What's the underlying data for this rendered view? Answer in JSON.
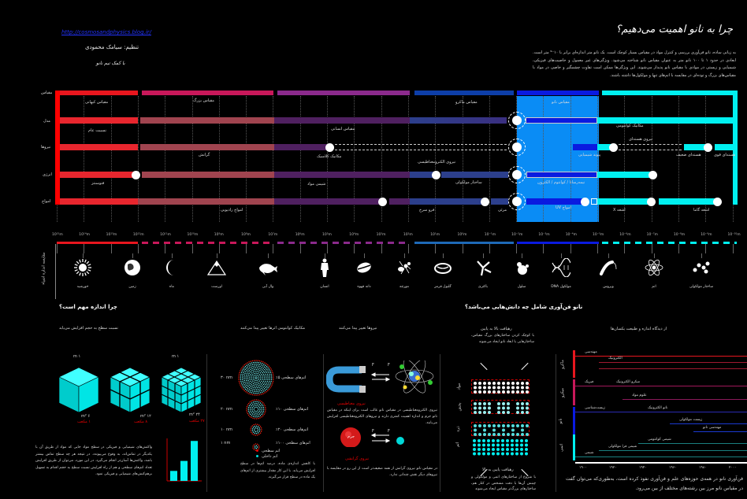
{
  "header": {
    "link": "http://cosmosandphysics.blog.ir/",
    "author": "تنظیم: سیامک محمودی",
    "signature": "با کمک تیم نانو",
    "title": "چرا به نانو اهمیت می‌دهیم؟",
    "intro": "به زبانی ساده، نانو فن‌آوری بررسی و کنترل مواد در مقیاس بسیار کوچک است. یک نانو متر اندازه‌ای برابر با ۱۰⁻⁹ متر است. ابعادی در حدود ۱ تا ۱۰۰ نانو متر به عنوان مقیاس نانو شناخته می‌شود. ویژگی‌های غیر معمول و خاصیت‌های فیزیکی، شیمیایی و زیستی در موادی با مقیاس نانو پدیدار می‌شوند. این ویژگی‌ها ممکن است تفاوت چشمگیر و خاصی در مواد با مقیاس‌های بزرگ و توده‌ای در مقایسه با اتم‌های تنها و مولکول‌ها داشته باشند."
  },
  "scale_chart": {
    "row_labels": [
      "مقیاس",
      "مدل",
      "نیروها",
      "انرژی",
      "امواج"
    ],
    "regions": [
      "مقیاس کیهانی",
      "مقیاس بزرگ",
      "مقیاس ماکرو",
      "مقیاس نانو"
    ],
    "labels": {
      "cosmic": "مقیاس کیهانی",
      "large": "مقیاس بزرگ",
      "macro": "مقیاس ماکرو",
      "nano": "مقیاس نانو",
      "relativity": "نسبیت عام",
      "human": "مقیاس انسانی",
      "quantum": "مکانیک کوانتومی",
      "gravity": "گرانش",
      "classical": "مکانیک کلاسیک",
      "em": "نیروی الکترومغناطیسی",
      "chem_bond": "پیوند شیمیایی",
      "weak_label": "نیروی هسته‌ای",
      "weak": "هسته‌ای ضعیف",
      "strong": "هسته‌ای قوی",
      "photosynthesis": "فتوسنتز",
      "matter_chem": "شیمی مواد",
      "molecular": "ساختار مولکولی",
      "semiconductor": "نیمه‌رسانا / کوانتوم / الکترون",
      "radio": "امواج رادیویی",
      "infrared": "فرو سرخ",
      "visible": "مرئی",
      "uv": "امواج UV",
      "xray": "اشعه X",
      "gamma": "اشعه گاما"
    },
    "colors": {
      "cosmic": "#e8161e",
      "large": "#c8185a",
      "macro": "#8b2a8c",
      "micro": "#1e4fa8",
      "nano": "#0a1ae0",
      "nano_zone": "#0a8cf5",
      "atomic": "#00f0f0"
    }
  },
  "scale_axis": {
    "side_label": "مقایسه اندازه اشیاء",
    "ticks": [
      "10¹⁵m",
      "10¹⁴m",
      "10¹³m",
      "10¹²m",
      "10¹¹m",
      "10¹⁰m",
      "10⁹m",
      "10⁸m",
      "10⁷m",
      "10⁶m",
      "10⁵m",
      "10⁴m",
      "10³m",
      "10²m",
      "10¹m",
      "10⁰m",
      "10⁻¹m",
      "10⁻²m",
      "10⁻³m",
      "10⁻⁴m",
      "10⁻⁵m",
      "10⁻⁶m",
      "10⁻⁷m",
      "10⁻⁸m",
      "10⁻⁹m",
      "10⁻¹⁰m"
    ],
    "objects": [
      {
        "label": "خورشید",
        "icon": "sun-icon"
      },
      {
        "label": "زمین",
        "icon": "earth-icon"
      },
      {
        "label": "ماه",
        "icon": "moon-icon"
      },
      {
        "label": "اورست",
        "icon": "mountain-icon"
      },
      {
        "label": "وال آبی",
        "icon": "whale-icon"
      },
      {
        "label": "انسان",
        "icon": "human-icon"
      },
      {
        "label": "دانه قهوه",
        "icon": "coffee-bean-icon"
      },
      {
        "label": "مورچه",
        "icon": "ant-icon"
      },
      {
        "label": "گلبول قرمز",
        "icon": "red-blood-cell-icon"
      },
      {
        "label": "باکتری",
        "icon": "antibody-icon"
      },
      {
        "label": "سلول",
        "icon": "cell-icon"
      },
      {
        "label": "مولکول DNA",
        "icon": "dna-icon"
      },
      {
        "label": "ویروس",
        "icon": "virus-icon"
      },
      {
        "label": "اتم",
        "icon": "atom-icon"
      },
      {
        "label": "ساختار مولکولی",
        "icon": "molecule-icon"
      }
    ]
  },
  "why_size": {
    "title": "چرا اندازه مهم است؟",
    "subtitle": "نسبت سطح به حجم افزایش می‌یابد",
    "cube_top": [
      "۱ m",
      "۱ m"
    ],
    "cube_area": [
      "۶ m²",
      "۱۲ m²",
      "۲۴ m²"
    ],
    "cube_count": [
      "۱ مکعب",
      "۸ مکعب",
      "۲۷ مکعب"
    ],
    "text": "واکنش‌های شیمیایی و فیزیکی در سطح مواد جایی که مواد از طریق آن با یکدیگر در تماس‌اند، به وقوع می‌پیوندد. در نتیجه هر چه سطح تماس بیشتر باشد، واکنش‌ها آسان‌تر انجام می‌گیرد. در این مورد، می‌توان از طریق افزایش تعداد اتم‌های سطحی و هم از راه افزایش نسبت سطح به حجم اقدام به تسهیل برهم‌کنش‌های شیمیایی و فیزیکی نمود.",
    "chart": {
      "type": "bar",
      "categories": [
        "۱",
        "۸",
        "۲۷"
      ],
      "values": [
        6,
        12,
        24
      ],
      "xlabel": "مساحت سطح",
      "ylabel": "m²",
      "ylim": [
        0,
        26
      ],
      "ticks": [
        "۲۰",
        "۱۰",
        "۵"
      ]
    }
  },
  "atoms": {
    "title": "مکانیک کوانتومی اثرها تغییر پیدا می‌کنند",
    "sizes": [
      "۳۰ nm",
      "۲۰ nm",
      "۱۰ nm",
      "۱ nm"
    ],
    "labels": [
      "اتم‌های سطحی ۵٪",
      "اتم‌های سطحی ۱۰٪",
      "اتم‌های سطحی ۲۰٪",
      "اتم‌های سطحی ۱۰۰٪"
    ],
    "legend": [
      "اتم سطحی",
      "اتم داخلی"
    ],
    "text": "با کاهش اندازه‌ی ماده، درصد اتم‌ها در سطح افزایش می‌یابد. با این کار مقدار بیشتری از اتم‌های یک ماده در سطح قرار می‌گیرند."
  },
  "forces": {
    "title": "نیروها تغییر پیدا می‌کنند",
    "magnetic": "نیروی مغناطیسی",
    "magnetic_text": "نیروی الکترومغناطیسی در مقیاس نانو غالب است برای اینکه در مقیاس نانو جرم و اندازه اهمیت کمتری دارند و نیروهای الکترومغناطیسی افزایش می‌یابند.",
    "gravity": "نیروی گرانشی",
    "gravity_text": "در مقیاس نانو نیروی گرانش از همه ضعیف‌تر است از این رو در مقایسه با نیروهای دیگر نقش چندانی ندارد.",
    "mass_label": "جرم",
    "arrow_labels": [
      "F",
      "F",
      "F",
      "F"
    ]
  },
  "approaches": {
    "title": "نانو فن‌آوری شامل چه دانش‌هایی می‌باشد؟",
    "top_down": "رهیافت بالا به پایین",
    "top_down_text": "با کوچک کردن ساختارهای بزرگ مقیاس، ساختارهایی با ابعاد نانو ایجاد می‌شوند",
    "rows": [
      "مواد",
      "بخش",
      "ذره",
      "اتم"
    ],
    "bottom_up": "رهیافت پایین به بالا",
    "bottom_up_text": "با شروع از ساختارهای اتمی و مولکولی و چینش آن‌ها با دقت مشخص در کنار هم، ساختارهای بزرگ‌تر مقیاس ایجاد می‌شوند"
  },
  "disciplines": {
    "title": "از دیدگاه اندازه و طبیعت یکسان‌ها",
    "groups": [
      "ماکرو",
      "میکرو",
      "نانو",
      "اتمی"
    ],
    "lines": [
      "مهندسی",
      "الکترونیک",
      "فیزیک",
      "میکرو الکترونیک",
      "علوم مواد",
      "زیست‌شناسی",
      "نانو الکترونیک",
      "زیست مولکولی",
      "مهندسی نانو",
      "شیمی کوانتومی",
      "شیمی فرا مولکولی",
      "شیمی"
    ],
    "years": [
      "۱۹۰۰",
      "۱۹۲۰",
      "۱۹۴۰",
      "۱۹۶۰",
      "۱۹۸۰",
      "۲۰۰۰"
    ],
    "footer": "فن‌آوری نانو در همه‌ی حوزه‌های علم و فن‌آوری نفوذ کرده است، به‌طوری‌که می‌توان گفت در مقیاس نانو مرز بین رشته‌های مختلف از بین می‌رود."
  }
}
